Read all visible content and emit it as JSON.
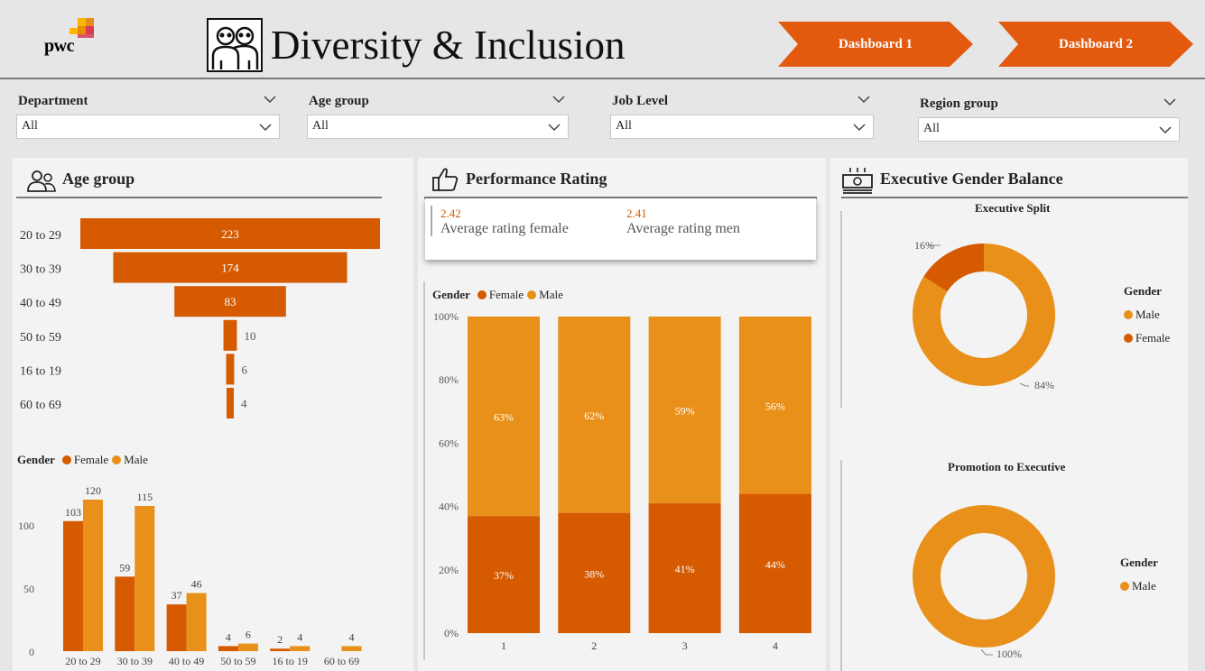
{
  "header": {
    "logo_text": "pwc",
    "title": "Diversity & Inclusion",
    "nav": [
      {
        "label": "Dashboard 1"
      },
      {
        "label": "Dashboard 2"
      }
    ]
  },
  "slicers": [
    {
      "label": "Department",
      "value": "All"
    },
    {
      "label": "Age group",
      "value": "All"
    },
    {
      "label": "Job Level",
      "value": "All"
    },
    {
      "label": "Region group",
      "value": "All"
    }
  ],
  "colors": {
    "female": "#d55a00",
    "male": "#e8901a",
    "nav": "#e35a0f"
  },
  "panels": {
    "age": {
      "title": "Age group",
      "icon": "people-icon"
    },
    "performance": {
      "title": "Performance Rating",
      "icon": "thumbs-up-icon"
    },
    "executive": {
      "title": "Executive Gender Balance",
      "icon": "money-stack-icon"
    }
  },
  "kpi": {
    "female_value": "2.42",
    "female_label": "Average rating female",
    "male_value": "2.41",
    "male_label": "Average rating men"
  },
  "legend": {
    "title": "Gender",
    "female": "Female",
    "male": "Male"
  },
  "chart_data": [
    {
      "type": "bar",
      "orientation": "horizontal",
      "categories": [
        "20 to 29",
        "30 to 39",
        "40 to 49",
        "50 to 59",
        "16 to 19",
        "60 to 69"
      ],
      "values": [
        223,
        174,
        83,
        10,
        6,
        4
      ]
    },
    {
      "type": "bar",
      "categories": [
        "20 to 29",
        "30 to 39",
        "40 to 49",
        "50 to 59",
        "16 to 19",
        "60 to 69"
      ],
      "series": [
        {
          "name": "Female",
          "values": [
            103,
            59,
            37,
            4,
            2,
            null
          ]
        },
        {
          "name": "Male",
          "values": [
            120,
            115,
            46,
            6,
            4,
            4
          ]
        }
      ],
      "yticks": [
        0,
        50,
        100
      ],
      "ylim": [
        0,
        125
      ],
      "legend_title": "Gender"
    },
    {
      "type": "bar",
      "stacked": true,
      "categories": [
        "1",
        "2",
        "3",
        "4"
      ],
      "series": [
        {
          "name": "Female",
          "values": [
            37,
            38,
            41,
            44
          ]
        },
        {
          "name": "Male",
          "values": [
            63,
            62,
            59,
            56
          ]
        }
      ],
      "yticks": [
        "0%",
        "20%",
        "40%",
        "60%",
        "80%",
        "100%"
      ],
      "ylim": [
        0,
        100
      ],
      "legend_title": "Gender"
    },
    {
      "type": "pie",
      "donut": true,
      "title": "Executive Split",
      "slices": [
        {
          "name": "Male",
          "value": 84,
          "label": "84%"
        },
        {
          "name": "Female",
          "value": 16,
          "label": "16%"
        }
      ],
      "legend_title": "Gender"
    },
    {
      "type": "pie",
      "donut": true,
      "title": "Promotion to Executive",
      "slices": [
        {
          "name": "Male",
          "value": 100,
          "label": "100%"
        }
      ],
      "legend_title": "Gender"
    }
  ]
}
